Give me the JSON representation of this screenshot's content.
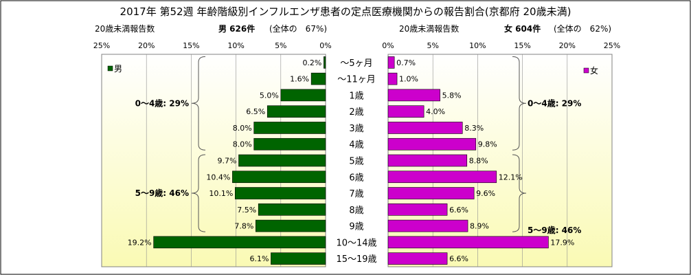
{
  "title": "2017年 第52週 年齢階級別インフルエンザ患者の定点医療機関からの報告割合(京都府 20歳未満)",
  "left_header": {
    "count_label": "20歳未満報告数",
    "total_label": "男 626件",
    "share_label": "(全体の　67%)"
  },
  "right_header": {
    "count_label": "20歳未満報告数",
    "total_label": "女 604件",
    "share_label": "(全体の　62%)"
  },
  "colors": {
    "male": "#006400",
    "female": "#cc00cc",
    "plot_gradient_top": "#ffffff",
    "plot_gradient_bottom": "#fafab4"
  },
  "chart_data": {
    "type": "bar",
    "layout": "population-pyramid",
    "categories": [
      "～5ヶ月",
      "～11ヶ月",
      "1歳",
      "2歳",
      "3歳",
      "4歳",
      "5歳",
      "6歳",
      "7歳",
      "8歳",
      "9歳",
      "10～14歳",
      "15～19歳"
    ],
    "series": [
      {
        "name": "男",
        "side": "left",
        "values": [
          0.2,
          1.6,
          5.0,
          6.5,
          8.0,
          8.0,
          9.7,
          10.4,
          10.1,
          7.5,
          7.8,
          19.2,
          6.1
        ],
        "labels": [
          "0.2%",
          "1.6%",
          "5.0%",
          "6.5%",
          "8.0%",
          "8.0%",
          "9.7%",
          "10.4%",
          "10.1%",
          "7.5%",
          "7.8%",
          "19.2%",
          "6.1%"
        ]
      },
      {
        "name": "女",
        "side": "right",
        "values": [
          0.7,
          1.0,
          5.8,
          4.0,
          8.3,
          9.8,
          8.8,
          12.1,
          9.6,
          6.6,
          8.9,
          17.9,
          6.6
        ],
        "labels": [
          "0.7%",
          "1.0%",
          "5.8%",
          "4.0%",
          "8.3%",
          "9.8%",
          "8.8%",
          "12.1%",
          "9.6%",
          "6.6%",
          "8.9%",
          "17.9%",
          "6.6%"
        ]
      }
    ],
    "xlim": [
      0,
      25
    ],
    "left_ticks": [
      "25%",
      "20%",
      "15%",
      "10%",
      "5%",
      "0%"
    ],
    "right_ticks": [
      "0%",
      "5%",
      "10%",
      "15%",
      "20%",
      "25%"
    ],
    "group_annotations": {
      "left": [
        {
          "label": "0～4歳: 29%",
          "from": 0,
          "to": 5
        },
        {
          "label": "5～9歳: 46%",
          "from": 6,
          "to": 10
        }
      ],
      "right": [
        {
          "label": "0～4歳: 29%",
          "from": 0,
          "to": 5
        },
        {
          "label": "5～9歳: 46%",
          "from": 6,
          "to": 10
        }
      ]
    },
    "legend_placement": "top-left (male), top-right (female)"
  }
}
